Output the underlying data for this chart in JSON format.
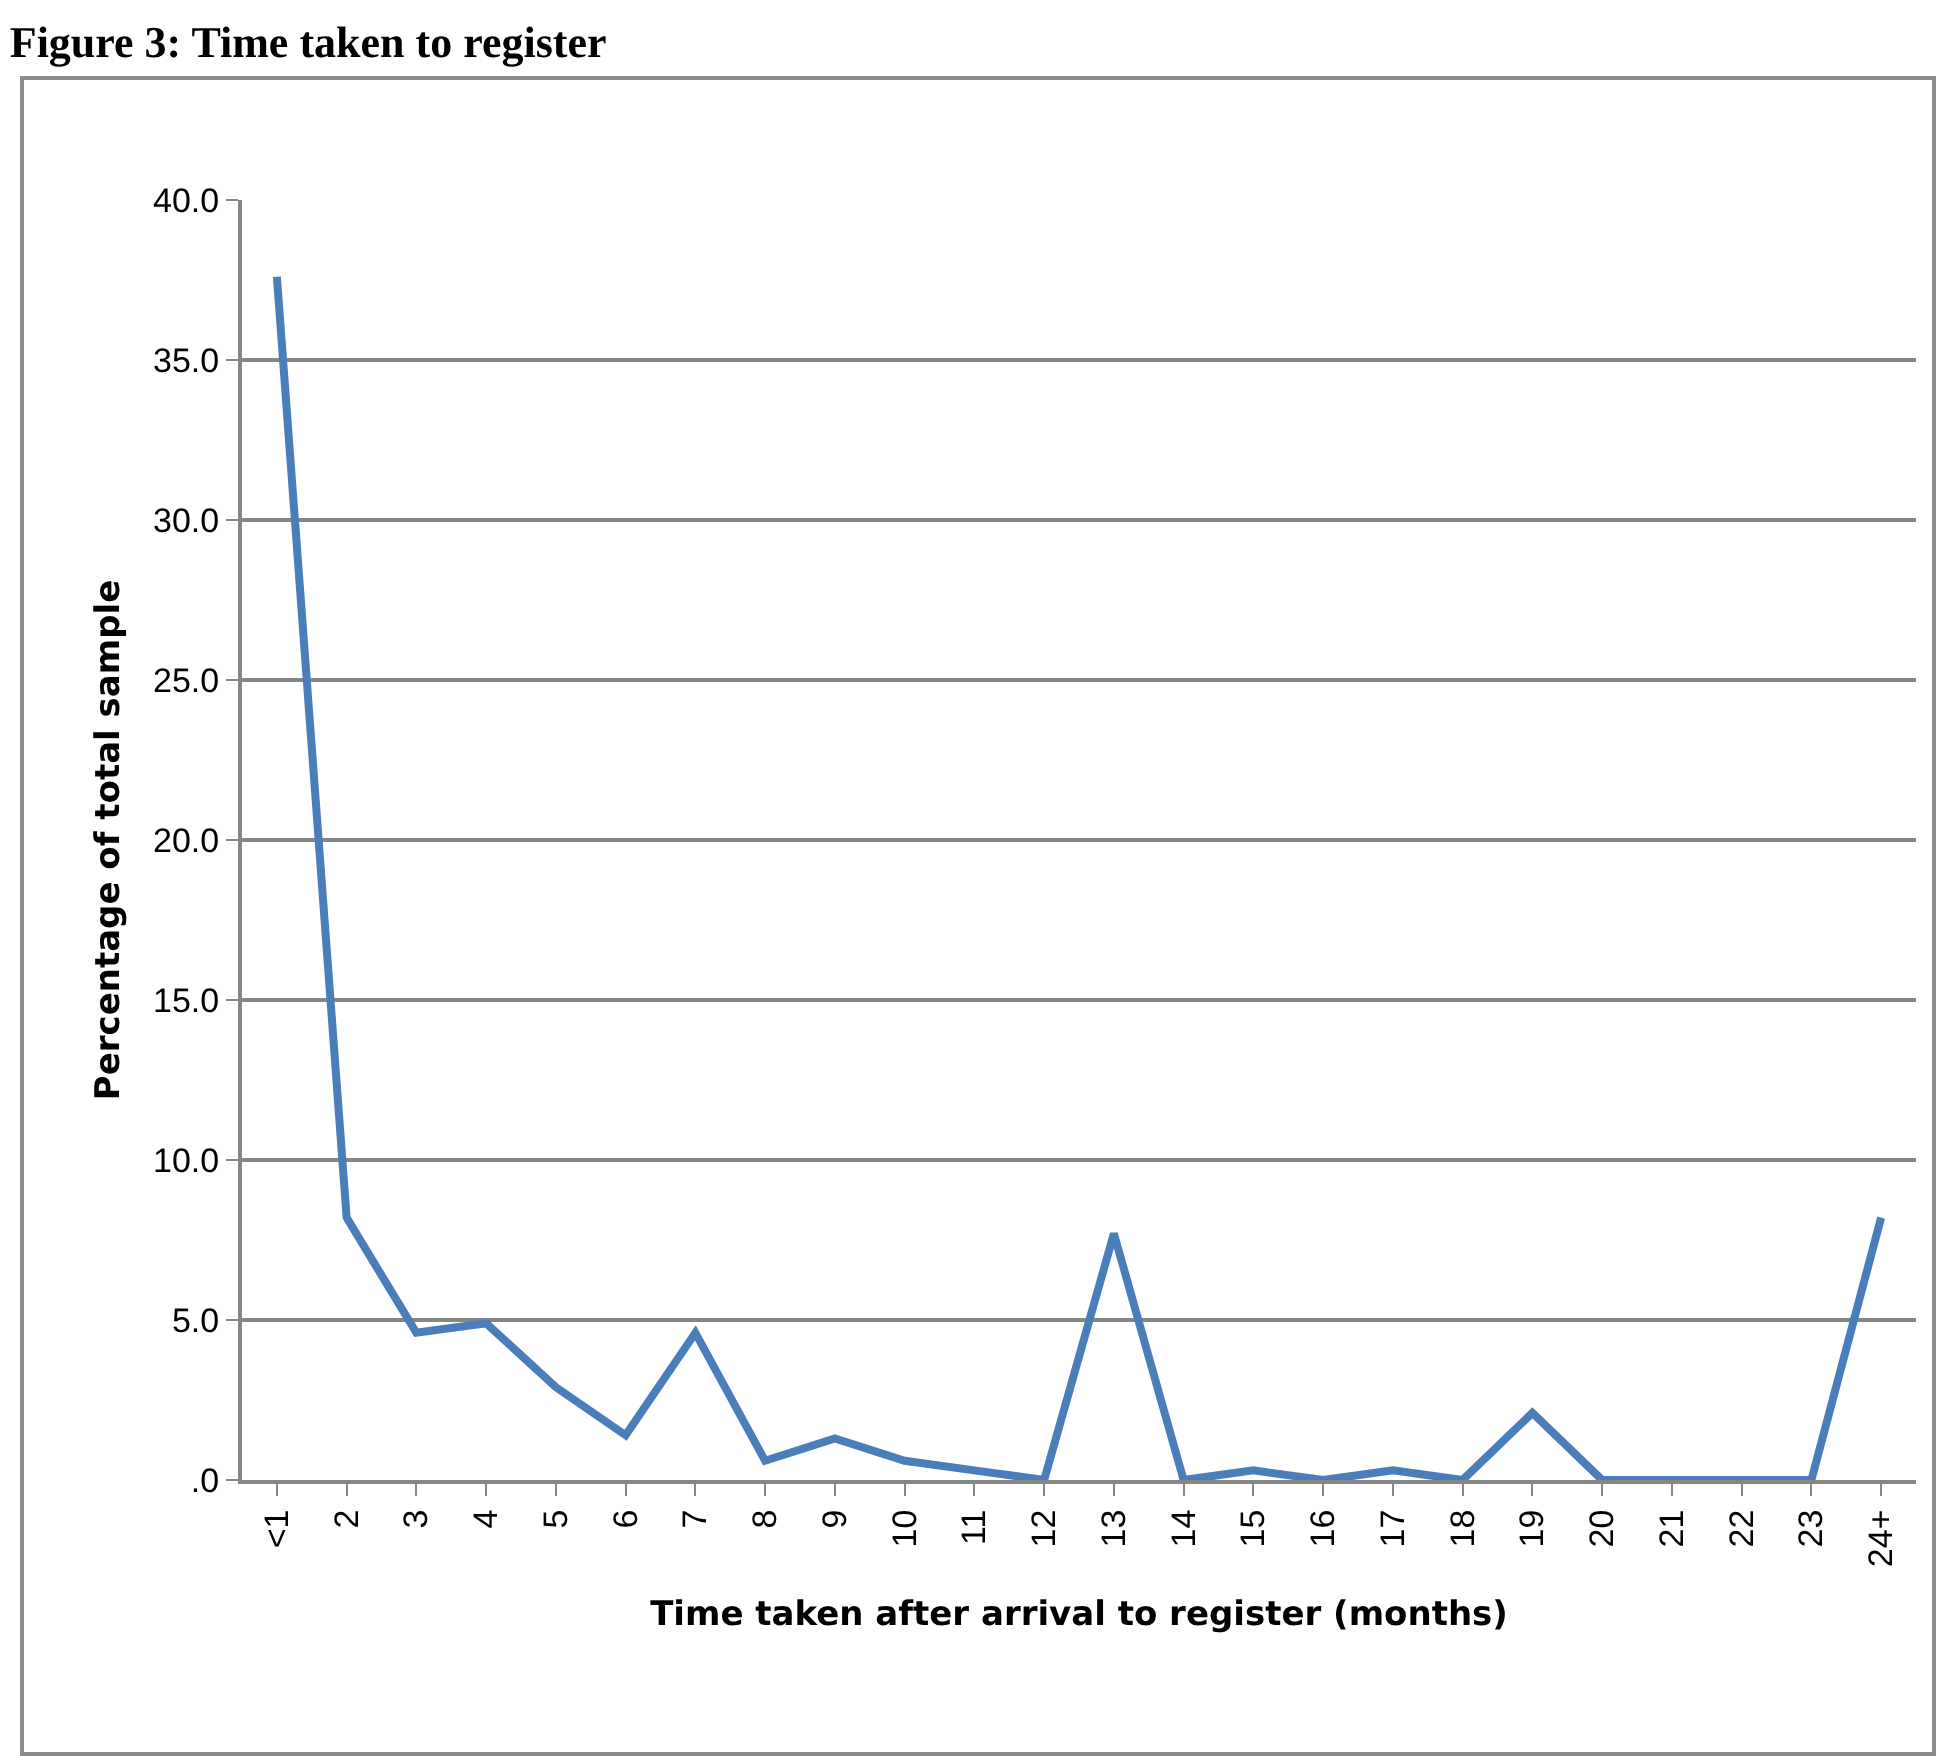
{
  "chart_data": {
    "type": "line",
    "title": "Figure 3: Time taken to register",
    "xlabel": "Time taken after arrival to register (months)",
    "ylabel": "Percentage of total sample",
    "categories": [
      "<1",
      "2",
      "3",
      "4",
      "5",
      "6",
      "7",
      "8",
      "9",
      "10",
      "11",
      "12",
      "13",
      "14",
      "15",
      "16",
      "17",
      "18",
      "19",
      "20",
      "21",
      "22",
      "23",
      "24+"
    ],
    "series": [
      {
        "color": "#4a7ebb",
        "values": [
          37.6,
          8.2,
          4.6,
          4.9,
          2.9,
          1.4,
          4.6,
          0.6,
          1.3,
          0.6,
          0.3,
          0,
          7.7,
          0,
          0.3,
          0,
          0.3,
          0,
          2.1,
          0,
          0,
          0,
          0,
          8.2
        ]
      }
    ],
    "ylim": [
      0,
      40
    ],
    "yticks": [
      {
        "value": 0,
        "label": ".0"
      },
      {
        "value": 5,
        "label": "5.0"
      },
      {
        "value": 10,
        "label": "10.0"
      },
      {
        "value": 15,
        "label": "15.0"
      },
      {
        "value": 20,
        "label": "20.0"
      },
      {
        "value": 25,
        "label": "25.0"
      },
      {
        "value": 30,
        "label": "30.0"
      },
      {
        "value": 35,
        "label": "35.0"
      },
      {
        "value": 40,
        "label": "40.0"
      }
    ],
    "grid": "y",
    "marker": "none",
    "line_style": "solid"
  }
}
